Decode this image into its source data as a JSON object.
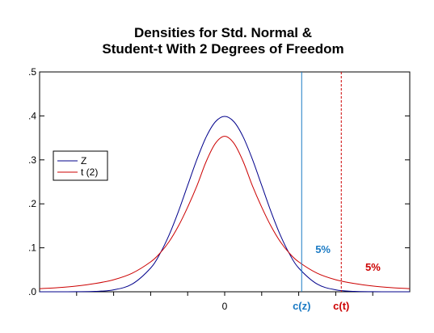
{
  "chart_data": {
    "type": "line",
    "title_line1": "Densities for Std. Normal &",
    "title_line2": "Student-t With 2 Degrees of Freedom",
    "xlim": [
      -5,
      5
    ],
    "ylim": [
      0,
      0.5
    ],
    "y_ticks": [
      0.0,
      0.1,
      0.2,
      0.3,
      0.4,
      0.5
    ],
    "y_tick_labels": [
      ".0",
      ".1",
      ".2",
      ".3",
      ".4",
      ".5"
    ],
    "x_tick_labels": [
      {
        "x": 0,
        "label": "0"
      }
    ],
    "x_minor_ticks": [
      -4,
      -3,
      -2,
      -1,
      1,
      2,
      3,
      4
    ],
    "legend_position": "left",
    "series": [
      {
        "name": "Z",
        "color": "#00008b",
        "x": [
          -5.0,
          -4.5,
          -4.0,
          -3.5,
          -3.0,
          -2.5,
          -2.0,
          -1.75,
          -1.5,
          -1.25,
          -1.0,
          -0.75,
          -0.5,
          -0.25,
          0.0,
          0.25,
          0.5,
          0.75,
          1.0,
          1.25,
          1.5,
          1.75,
          2.0,
          2.5,
          3.0,
          3.5,
          4.0,
          4.5,
          5.0
        ],
        "y": [
          1.5e-06,
          1.6e-05,
          0.000134,
          0.000873,
          0.00443,
          0.0175,
          0.054,
          0.0863,
          0.1295,
          0.1826,
          0.242,
          0.3011,
          0.3521,
          0.3867,
          0.3989,
          0.3867,
          0.3521,
          0.3011,
          0.242,
          0.1826,
          0.1295,
          0.0863,
          0.054,
          0.0175,
          0.00443,
          0.000873,
          0.000134,
          1.6e-05,
          1.5e-06
        ]
      },
      {
        "name": "t (2)",
        "color": "#cc0000",
        "x": [
          -5.0,
          -4.5,
          -4.0,
          -3.5,
          -3.0,
          -2.5,
          -2.0,
          -1.75,
          -1.5,
          -1.25,
          -1.0,
          -0.75,
          -0.5,
          -0.25,
          0.0,
          0.25,
          0.5,
          0.75,
          1.0,
          1.25,
          1.5,
          1.75,
          2.0,
          2.5,
          3.0,
          3.5,
          4.0,
          4.5,
          5.0
        ],
        "y": [
          0.0071,
          0.0095,
          0.0131,
          0.0188,
          0.0274,
          0.0422,
          0.068,
          0.0876,
          0.1142,
          0.1495,
          0.1925,
          0.2409,
          0.2962,
          0.3376,
          0.3536,
          0.3376,
          0.2962,
          0.2409,
          0.1925,
          0.1495,
          0.1142,
          0.0876,
          0.068,
          0.0422,
          0.0274,
          0.0188,
          0.0131,
          0.0095,
          0.0071
        ]
      }
    ],
    "critical_values": [
      {
        "label": "c(z)",
        "x": 2.08,
        "color": "#1a7ac4",
        "style": "solid",
        "tail_label": "5%",
        "tail_label_x": 2.45,
        "tail_label_y": 0.088
      },
      {
        "label": "c(t)",
        "x": 3.15,
        "color": "#cc0000",
        "style": "dashed",
        "tail_label": "5%",
        "tail_label_x": 3.8,
        "tail_label_y": 0.048
      }
    ]
  }
}
